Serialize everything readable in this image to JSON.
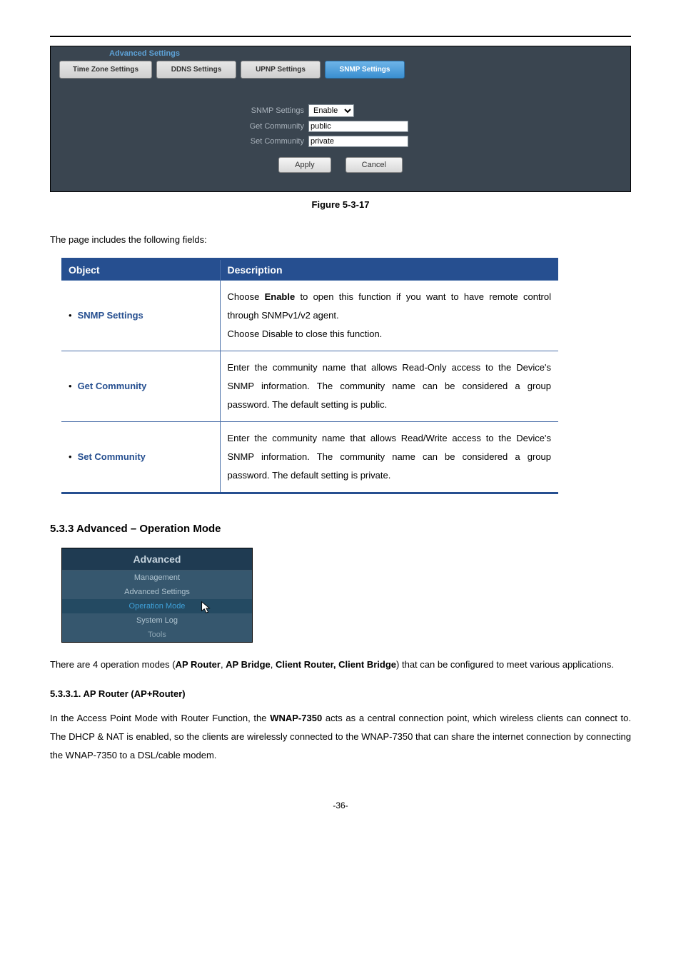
{
  "figure": {
    "title": "Advanced Settings",
    "tabs": {
      "time": "Time Zone Settings",
      "ddns": "DDNS Settings",
      "upnp": "UPNP Settings",
      "snmp": "SNMP Settings"
    },
    "labels": {
      "snmp": "SNMP Settings",
      "get": "Get Community",
      "set": "Set Community"
    },
    "values": {
      "snmp_select": "Enable",
      "get": "public",
      "set": "private"
    },
    "buttons": {
      "apply": "Apply",
      "cancel": "Cancel"
    },
    "caption": "Figure 5-3-17"
  },
  "fields_intro": "The page includes the following fields:",
  "table": {
    "headers": {
      "object": "Object",
      "description": "Description"
    },
    "rows": [
      {
        "object": "SNMP Settings",
        "desc_html": "Choose <b>Enable</b> to open this function if you want to have remote control through SNMPv1/v2 agent.<br>Choose Disable to close this function."
      },
      {
        "object": "Get Community",
        "desc_html": "Enter the community name that allows Read-Only access to the Device's SNMP information. The community name can be considered a group password. The default setting is public."
      },
      {
        "object": "Set Community",
        "desc_html": "Enter the community name that allows Read/Write access to the Device's SNMP information. The community name can be considered a group password. The default setting is private."
      }
    ]
  },
  "section": {
    "heading": "5.3.3  Advanced – Operation Mode",
    "menu": {
      "title": "Advanced",
      "items": [
        "Management",
        "Advanced Settings",
        "Operation Mode",
        "System Log",
        "Tools"
      ],
      "selected_index": 2
    },
    "para1_html": "There are 4 operation modes (<b>AP Router</b>, <b>AP Bridge</b>, <b>Client Router, Client Bridge</b>) that can be configured to meet various applications.",
    "sub_heading": "5.3.3.1.  AP Router (AP+Router)",
    "para2_html": "In the Access Point Mode with Router Function, the <b>WNAP-7350</b> acts as a central connection point, which wireless clients can connect to. The DHCP & NAT is enabled, so the clients are wirelessly connected to the WNAP-7350 that can share the internet connection by connecting the WNAP-7350 to a DSL/cable modem."
  },
  "page_number": "-36-",
  "style": {
    "brand_blue": "#264f90",
    "tab_active_bg": "#3a8fd0",
    "panel_bg": "#3a4550",
    "menu_head_bg": "#1f3b52",
    "menu_item_bg": "#36576e",
    "menu_sel_bg": "#244a62",
    "link_color": "#3fa0d8"
  }
}
